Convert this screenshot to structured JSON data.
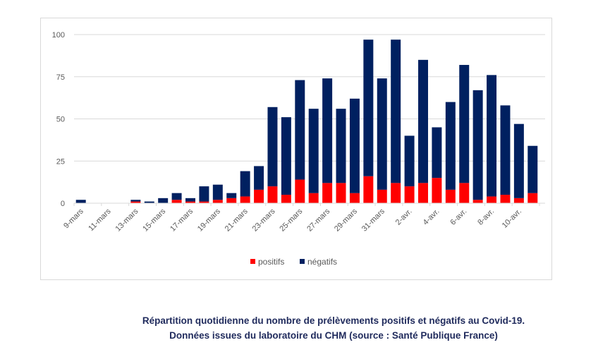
{
  "chart_data": {
    "type": "bar",
    "stacked": true,
    "categories": [
      "9-mars",
      "10-mars",
      "11-mars",
      "12-mars",
      "13-mars",
      "14-mars",
      "15-mars",
      "16-mars",
      "17-mars",
      "18-mars",
      "19-mars",
      "20-mars",
      "21-mars",
      "22-mars",
      "23-mars",
      "24-mars",
      "25-mars",
      "26-mars",
      "27-mars",
      "28-mars",
      "29-mars",
      "30-mars",
      "31-mars",
      "1-avr.",
      "2-avr.",
      "3-avr.",
      "4-avr.",
      "5-avr.",
      "6-avr.",
      "7-avr.",
      "8-avr.",
      "9-avr.",
      "10-avr.",
      "11-avr."
    ],
    "series": [
      {
        "name": "positifs",
        "color": "#ff0000",
        "values": [
          0,
          0,
          0,
          0,
          1,
          0,
          0,
          2,
          1,
          1,
          2,
          3,
          4,
          8,
          10,
          5,
          14,
          6,
          12,
          12,
          6,
          16,
          8,
          12,
          10,
          12,
          15,
          8,
          12,
          2,
          4,
          5,
          3,
          6
        ]
      },
      {
        "name": "négatifs",
        "color": "#002060",
        "values": [
          2,
          0,
          0,
          0,
          1,
          1,
          3,
          4,
          2,
          9,
          9,
          3,
          15,
          14,
          47,
          46,
          59,
          50,
          62,
          44,
          56,
          81,
          66,
          85,
          30,
          73,
          30,
          52,
          70,
          65,
          72,
          53,
          44,
          28
        ]
      }
    ],
    "ylim": [
      0,
      100
    ],
    "yticks": [
      "0",
      "25",
      "50",
      "75",
      "100"
    ],
    "grid": true,
    "legend": "bottom"
  },
  "caption": {
    "line1": "Répartition quotidienne du nombre de prélèvements positifs et négatifs au Covid-19.",
    "line2": "Données issues du laboratoire du CHM (source : Santé Publique France)"
  }
}
